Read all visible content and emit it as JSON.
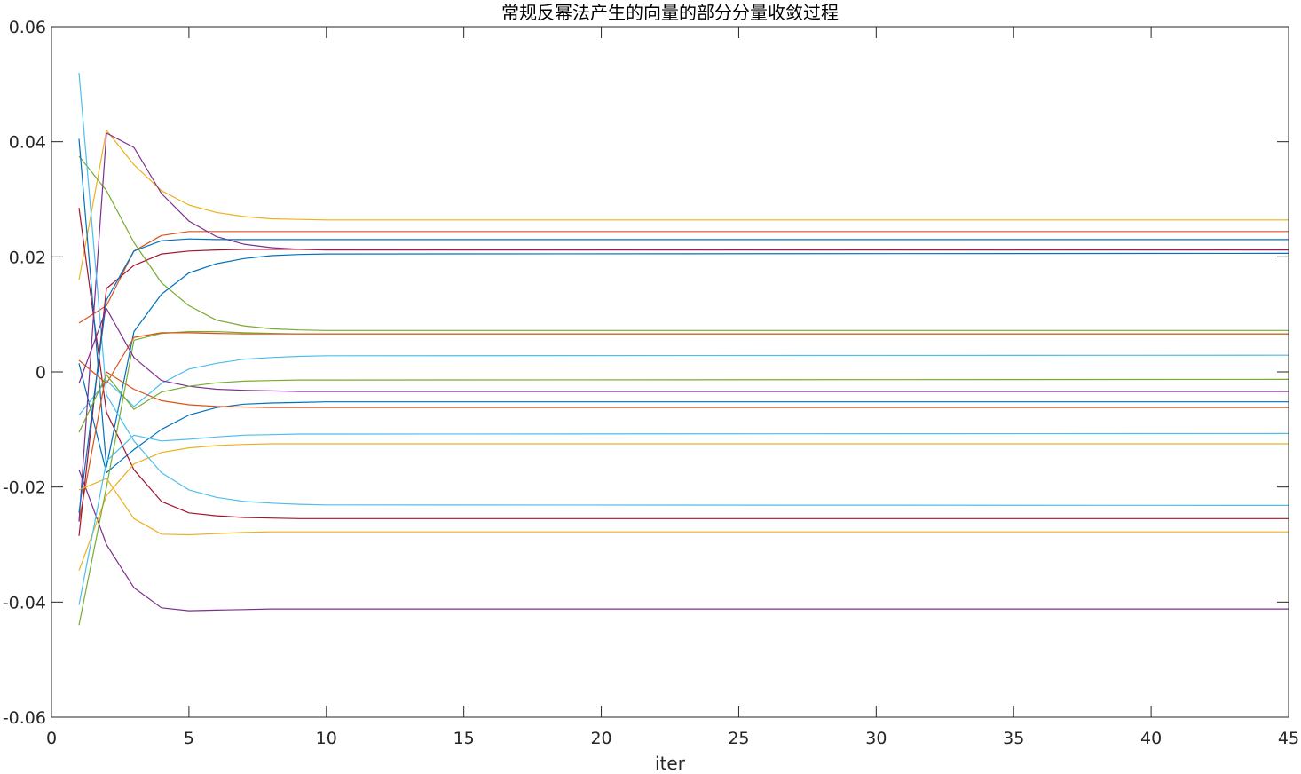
{
  "chart_data": {
    "type": "line",
    "title": "常规反幂法产生的向量的部分分量收敛过程",
    "xlabel": "iter",
    "ylabel": "",
    "xlim": [
      0,
      45
    ],
    "ylim": [
      -0.06,
      0.06
    ],
    "xticks": [
      0,
      5,
      10,
      15,
      20,
      25,
      30,
      35,
      40,
      45
    ],
    "xtick_labels": [
      "0",
      "5",
      "10",
      "15",
      "20",
      "25",
      "30",
      "35",
      "40",
      "45"
    ],
    "yticks": [
      -0.06,
      -0.04,
      -0.02,
      0,
      0.02,
      0.04,
      0.06
    ],
    "ytick_labels": [
      "-0.06",
      "-0.04",
      "-0.02",
      "0",
      "0.02",
      "0.04",
      "0.06"
    ],
    "grid": false,
    "box": true,
    "x": [
      1,
      2,
      3,
      4,
      5,
      6,
      7,
      8,
      9,
      10,
      45
    ],
    "series": [
      {
        "color": "#0072BD",
        "values": [
          0.0015,
          -0.0175,
          -0.0135,
          -0.01,
          -0.0075,
          -0.0062,
          -0.0056,
          -0.0054,
          -0.0053,
          -0.0052,
          -0.0052
        ]
      },
      {
        "color": "#D95319",
        "values": [
          0.0085,
          0.0115,
          0.021,
          0.0237,
          0.0244,
          0.0244,
          0.0244,
          0.0244,
          0.0244,
          0.0244,
          0.0244
        ]
      },
      {
        "color": "#EDB120",
        "values": [
          0.016,
          0.042,
          0.036,
          0.0315,
          0.029,
          0.0277,
          0.027,
          0.0266,
          0.0265,
          0.0264,
          0.0264
        ]
      },
      {
        "color": "#7E2F8E",
        "values": [
          -0.017,
          -0.03,
          -0.0375,
          -0.041,
          -0.0415,
          -0.0414,
          -0.0413,
          -0.0412,
          -0.0412,
          -0.0412,
          -0.0412
        ]
      },
      {
        "color": "#77AC30",
        "values": [
          0.0375,
          0.0315,
          0.0225,
          0.0155,
          0.0115,
          0.009,
          0.008,
          0.0075,
          0.0073,
          0.0072,
          0.0072
        ]
      },
      {
        "color": "#4DBEEE",
        "values": [
          -0.0075,
          -0.0015,
          -0.006,
          -0.002,
          0.0005,
          0.0015,
          0.0022,
          0.0025,
          0.0027,
          0.0028,
          0.0029
        ]
      },
      {
        "color": "#A2142F",
        "values": [
          0.0285,
          -0.007,
          -0.017,
          -0.0225,
          -0.0245,
          -0.025,
          -0.0253,
          -0.0254,
          -0.0255,
          -0.0255,
          -0.0255
        ]
      },
      {
        "color": "#0072BD",
        "values": [
          0.0405,
          -0.0165,
          0.007,
          0.0135,
          0.0172,
          0.0188,
          0.0197,
          0.0202,
          0.0204,
          0.0205,
          0.0206
        ]
      },
      {
        "color": "#D95319",
        "values": [
          -0.026,
          0.0,
          -0.003,
          -0.005,
          -0.0057,
          -0.006,
          -0.0061,
          -0.0062,
          -0.0062,
          -0.0062,
          -0.0062
        ]
      },
      {
        "color": "#EDB120",
        "values": [
          -0.0345,
          -0.0215,
          -0.016,
          -0.014,
          -0.0132,
          -0.0128,
          -0.0126,
          -0.0125,
          -0.0125,
          -0.0125,
          -0.0125
        ]
      },
      {
        "color": "#7E2F8E",
        "values": [
          -0.026,
          0.0415,
          0.039,
          0.031,
          0.0262,
          0.0235,
          0.0222,
          0.0216,
          0.0213,
          0.0212,
          0.0212
        ]
      },
      {
        "color": "#77AC30",
        "values": [
          -0.044,
          -0.02,
          0.0055,
          0.0067,
          0.007,
          0.007,
          0.0068,
          0.0067,
          0.0066,
          0.0066,
          0.0066
        ]
      },
      {
        "color": "#4DBEEE",
        "values": [
          0.052,
          -0.004,
          -0.012,
          -0.0175,
          -0.0205,
          -0.0218,
          -0.0225,
          -0.0228,
          -0.023,
          -0.0231,
          -0.0232
        ]
      },
      {
        "color": "#A2142F",
        "values": [
          -0.0285,
          0.0145,
          0.0185,
          0.0205,
          0.021,
          0.0212,
          0.0213,
          0.0213,
          0.0213,
          0.0213,
          0.0213
        ]
      },
      {
        "color": "#0072BD",
        "values": [
          -0.0245,
          0.0125,
          0.021,
          0.0228,
          0.0231,
          0.023,
          0.023,
          0.023,
          0.023,
          0.023,
          0.023
        ]
      },
      {
        "color": "#D95319",
        "values": [
          0.002,
          -0.002,
          0.006,
          0.0068,
          0.0068,
          0.0067,
          0.0066,
          0.0066,
          0.0066,
          0.0066,
          0.0066
        ]
      },
      {
        "color": "#EDB120",
        "values": [
          -0.0205,
          -0.0185,
          -0.0255,
          -0.0282,
          -0.0283,
          -0.0281,
          -0.0279,
          -0.0278,
          -0.0278,
          -0.0278,
          -0.0278
        ]
      },
      {
        "color": "#7E2F8E",
        "values": [
          -0.002,
          0.011,
          0.0025,
          -0.0015,
          -0.0025,
          -0.003,
          -0.0032,
          -0.0033,
          -0.0034,
          -0.0034,
          -0.0034
        ]
      },
      {
        "color": "#77AC30",
        "values": [
          -0.0105,
          -0.0005,
          -0.0065,
          -0.0035,
          -0.0025,
          -0.0019,
          -0.0016,
          -0.0015,
          -0.0014,
          -0.0014,
          -0.0013
        ]
      },
      {
        "color": "#4DBEEE",
        "values": [
          -0.0405,
          -0.0155,
          -0.011,
          -0.012,
          -0.0117,
          -0.0113,
          -0.011,
          -0.0109,
          -0.0108,
          -0.0108,
          -0.0107
        ]
      }
    ]
  }
}
